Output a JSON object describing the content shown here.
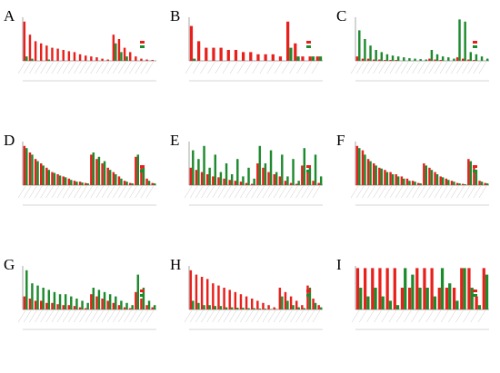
{
  "chart_data": [
    {
      "type": "bar",
      "panel": "A",
      "ylim": [
        0,
        100
      ],
      "categories": [
        null,
        null,
        null,
        null,
        null,
        null,
        null,
        null,
        null,
        null,
        null,
        null,
        null,
        null,
        null,
        null,
        null,
        null,
        null,
        null,
        null,
        null,
        null,
        null
      ],
      "series": [
        {
          "color": "#e8201c",
          "values": [
            90,
            60,
            45,
            40,
            35,
            30,
            28,
            25,
            22,
            20,
            15,
            12,
            10,
            8,
            5,
            3,
            60,
            50,
            30,
            20,
            10,
            5,
            3,
            2
          ]
        },
        {
          "color": "#1e8a2e",
          "values": [
            10,
            5,
            0,
            0,
            3,
            0,
            0,
            0,
            0,
            0,
            0,
            0,
            0,
            0,
            0,
            0,
            40,
            20,
            10,
            0,
            0,
            0,
            0,
            0
          ]
        }
      ]
    },
    {
      "type": "bar",
      "panel": "B",
      "ylim": [
        0,
        100
      ],
      "categories": [
        null,
        null,
        null,
        null,
        null,
        null,
        null,
        null,
        null,
        null,
        null,
        null,
        null,
        null,
        null,
        null,
        null,
        null
      ],
      "series": [
        {
          "color": "#e8201c",
          "values": [
            80,
            45,
            30,
            30,
            30,
            25,
            25,
            20,
            20,
            15,
            15,
            15,
            10,
            90,
            40,
            10,
            10,
            10
          ]
        },
        {
          "color": "#1e8a2e",
          "values": [
            5,
            0,
            0,
            0,
            0,
            0,
            0,
            0,
            0,
            0,
            0,
            0,
            0,
            30,
            10,
            0,
            10,
            10
          ]
        }
      ]
    },
    {
      "type": "bar",
      "panel": "C",
      "ylim": [
        0,
        100
      ],
      "categories": [
        null,
        null,
        null,
        null,
        null,
        null,
        null,
        null,
        null,
        null,
        null,
        null,
        null,
        null,
        null,
        null,
        null,
        null,
        null,
        null,
        null,
        null,
        null,
        null
      ],
      "series": [
        {
          "color": "#e8201c",
          "values": [
            10,
            5,
            5,
            3,
            3,
            2,
            2,
            2,
            0,
            0,
            0,
            0,
            0,
            5,
            3,
            2,
            0,
            0,
            8,
            5,
            3,
            2,
            0,
            0
          ]
        },
        {
          "color": "#1e8a2e",
          "values": [
            70,
            50,
            35,
            25,
            20,
            15,
            12,
            10,
            8,
            6,
            5,
            4,
            3,
            25,
            15,
            10,
            8,
            5,
            95,
            90,
            20,
            15,
            10,
            5
          ]
        }
      ]
    },
    {
      "type": "bar",
      "panel": "D",
      "ylim": [
        0,
        100
      ],
      "categories": [
        null,
        null,
        null,
        null,
        null,
        null,
        null,
        null,
        null,
        null,
        null,
        null,
        null,
        null,
        null,
        null,
        null,
        null,
        null,
        null,
        null,
        null,
        null,
        null
      ],
      "series": [
        {
          "color": "#e8201c",
          "values": [
            90,
            75,
            60,
            50,
            40,
            30,
            25,
            20,
            15,
            10,
            8,
            5,
            70,
            60,
            50,
            40,
            30,
            20,
            10,
            5,
            65,
            45,
            15,
            5
          ]
        },
        {
          "color": "#1e8a2e",
          "values": [
            85,
            70,
            55,
            45,
            35,
            28,
            22,
            18,
            12,
            8,
            6,
            4,
            75,
            65,
            55,
            35,
            25,
            15,
            8,
            4,
            70,
            40,
            10,
            4
          ]
        }
      ]
    },
    {
      "type": "bar",
      "panel": "E",
      "ylim": [
        0,
        100
      ],
      "categories": [
        null,
        null,
        null,
        null,
        null,
        null,
        null,
        null,
        null,
        null,
        null,
        null,
        null,
        null,
        null,
        null,
        null,
        null,
        null,
        null,
        null,
        null,
        null,
        null
      ],
      "series": [
        {
          "color": "#e8201c",
          "values": [
            40,
            35,
            30,
            25,
            20,
            18,
            15,
            12,
            10,
            8,
            5,
            3,
            50,
            40,
            30,
            25,
            20,
            10,
            5,
            3,
            45,
            30,
            10,
            5
          ]
        },
        {
          "color": "#1e8a2e",
          "values": [
            80,
            60,
            90,
            40,
            70,
            30,
            50,
            25,
            60,
            20,
            40,
            15,
            90,
            50,
            80,
            30,
            70,
            20,
            60,
            10,
            85,
            40,
            70,
            20
          ]
        }
      ]
    },
    {
      "type": "bar",
      "panel": "F",
      "ylim": [
        0,
        100
      ],
      "categories": [
        null,
        null,
        null,
        null,
        null,
        null,
        null,
        null,
        null,
        null,
        null,
        null,
        null,
        null,
        null,
        null,
        null,
        null,
        null,
        null,
        null,
        null,
        null,
        null
      ],
      "series": [
        {
          "color": "#e8201c",
          "values": [
            90,
            80,
            60,
            50,
            40,
            35,
            30,
            25,
            20,
            15,
            10,
            5,
            50,
            40,
            30,
            20,
            15,
            10,
            5,
            3,
            60,
            40,
            10,
            5
          ]
        },
        {
          "color": "#1e8a2e",
          "values": [
            85,
            70,
            55,
            45,
            38,
            30,
            25,
            20,
            15,
            10,
            8,
            4,
            45,
            35,
            25,
            18,
            12,
            8,
            4,
            2,
            55,
            35,
            8,
            4
          ]
        }
      ]
    },
    {
      "type": "bar",
      "panel": "G",
      "ylim": [
        0,
        100
      ],
      "categories": [
        null,
        null,
        null,
        null,
        null,
        null,
        null,
        null,
        null,
        null,
        null,
        null,
        null,
        null,
        null,
        null,
        null,
        null,
        null,
        null,
        null,
        null,
        null,
        null
      ],
      "series": [
        {
          "color": "#e8201c",
          "values": [
            30,
            25,
            20,
            20,
            15,
            15,
            12,
            10,
            10,
            8,
            5,
            3,
            35,
            30,
            25,
            20,
            15,
            10,
            5,
            3,
            40,
            25,
            10,
            5
          ]
        },
        {
          "color": "#1e8a2e",
          "values": [
            90,
            60,
            55,
            50,
            45,
            40,
            35,
            35,
            30,
            25,
            20,
            15,
            50,
            45,
            40,
            35,
            30,
            20,
            15,
            10,
            80,
            50,
            20,
            10
          ]
        }
      ]
    },
    {
      "type": "bar",
      "panel": "H",
      "ylim": [
        0,
        100
      ],
      "categories": [
        null,
        null,
        null,
        null,
        null,
        null,
        null,
        null,
        null,
        null,
        null,
        null,
        null,
        null,
        null,
        null,
        null,
        null,
        null,
        null,
        null,
        null,
        null,
        null
      ],
      "series": [
        {
          "color": "#e8201c",
          "values": [
            90,
            80,
            75,
            70,
            60,
            55,
            50,
            45,
            40,
            35,
            30,
            25,
            20,
            15,
            10,
            5,
            50,
            40,
            30,
            20,
            10,
            55,
            25,
            10
          ]
        },
        {
          "color": "#1e8a2e",
          "values": [
            20,
            15,
            10,
            10,
            8,
            8,
            5,
            5,
            4,
            4,
            3,
            3,
            2,
            2,
            1,
            1,
            30,
            20,
            10,
            5,
            3,
            50,
            15,
            5
          ]
        }
      ]
    },
    {
      "type": "bar",
      "panel": "I",
      "ylim": [
        0,
        100
      ],
      "categories": [
        null,
        null,
        null,
        null,
        null,
        null,
        null,
        null,
        null,
        null,
        null,
        null,
        null,
        null,
        null,
        null,
        null,
        null
      ],
      "series": [
        {
          "color": "#e8201c",
          "values": [
            95,
            95,
            95,
            95,
            95,
            95,
            50,
            50,
            95,
            95,
            95,
            50,
            50,
            50,
            95,
            95,
            30,
            95
          ]
        },
        {
          "color": "#1e8a2e",
          "values": [
            50,
            30,
            50,
            30,
            20,
            10,
            95,
            80,
            50,
            50,
            30,
            95,
            60,
            20,
            95,
            50,
            10,
            80
          ]
        }
      ]
    }
  ]
}
